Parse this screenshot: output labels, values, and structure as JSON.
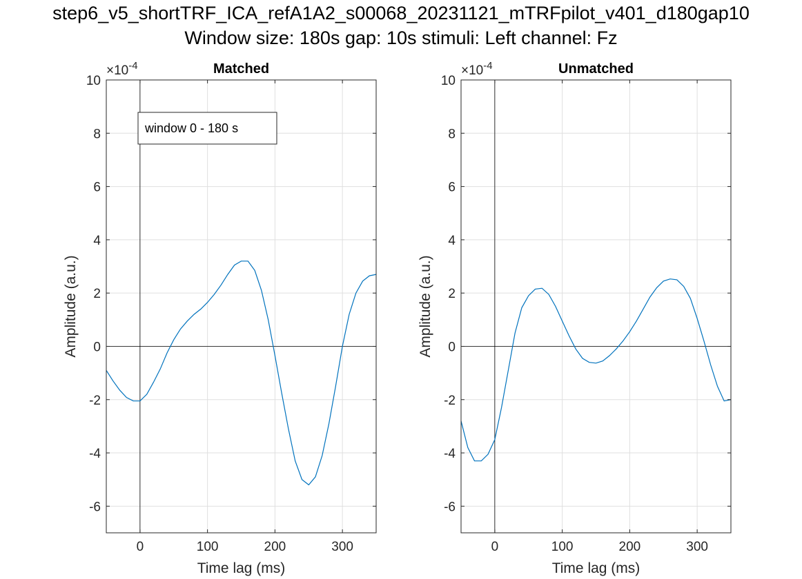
{
  "figure": {
    "title_line1": "step6_v5_shortTRF_ICA_refA1A2_s00068_20231121_mTRFpilot_v401_d180gap10",
    "title_line2": "Window size: 180s gap: 10s stimuli: Left channel: Fz"
  },
  "chart_data": [
    {
      "type": "line",
      "title": "Matched",
      "xlabel": "Time lag (ms)",
      "ylabel": "Amplitude (a.u.)",
      "y_exponent_label": "×10",
      "y_exponent_power": "-4",
      "xlim": [
        -50,
        350
      ],
      "ylim": [
        -7,
        10
      ],
      "xticks": [
        0,
        100,
        200,
        300
      ],
      "yticks": [
        -6,
        -4,
        -2,
        0,
        2,
        4,
        6,
        8,
        10
      ],
      "grid": true,
      "zero_lines": true,
      "line_color": "#0072BD",
      "legend": "window 0 - 180 s",
      "legend_location": "top-left",
      "series": [
        {
          "x": [
            -50,
            -40,
            -30,
            -20,
            -10,
            0,
            10,
            20,
            30,
            40,
            50,
            60,
            70,
            80,
            90,
            100,
            110,
            120,
            130,
            140,
            150,
            160,
            170,
            180,
            190,
            200,
            210,
            220,
            230,
            240,
            250,
            260,
            270,
            280,
            290,
            300,
            310,
            320,
            330,
            340,
            350
          ],
          "y": [
            -0.9,
            -1.3,
            -1.65,
            -1.92,
            -2.05,
            -2.05,
            -1.8,
            -1.35,
            -0.85,
            -0.25,
            0.25,
            0.65,
            0.95,
            1.2,
            1.4,
            1.65,
            1.95,
            2.3,
            2.7,
            3.05,
            3.2,
            3.2,
            2.85,
            2.1,
            1.0,
            -0.35,
            -1.75,
            -3.1,
            -4.3,
            -5.0,
            -5.2,
            -4.9,
            -4.1,
            -2.9,
            -1.5,
            0.0,
            1.2,
            2.0,
            2.45,
            2.65,
            2.7
          ]
        }
      ]
    },
    {
      "type": "line",
      "title": "Unmatched",
      "xlabel": "Time lag (ms)",
      "ylabel": "Amplitude (a.u.)",
      "y_exponent_label": "×10",
      "y_exponent_power": "-4",
      "xlim": [
        -50,
        350
      ],
      "ylim": [
        -7,
        10
      ],
      "xticks": [
        0,
        100,
        200,
        300
      ],
      "yticks": [
        -6,
        -4,
        -2,
        0,
        2,
        4,
        6,
        8,
        10
      ],
      "grid": true,
      "zero_lines": true,
      "line_color": "#0072BD",
      "series": [
        {
          "x": [
            -50,
            -40,
            -30,
            -20,
            -10,
            0,
            10,
            20,
            30,
            40,
            50,
            60,
            70,
            80,
            90,
            100,
            110,
            120,
            130,
            140,
            150,
            160,
            170,
            180,
            190,
            200,
            210,
            220,
            230,
            240,
            250,
            260,
            270,
            280,
            290,
            300,
            310,
            320,
            330,
            340,
            350
          ],
          "y": [
            -2.8,
            -3.8,
            -4.3,
            -4.3,
            -4.05,
            -3.5,
            -2.3,
            -0.9,
            0.5,
            1.45,
            1.9,
            2.15,
            2.18,
            1.95,
            1.5,
            0.95,
            0.4,
            -0.1,
            -0.45,
            -0.6,
            -0.63,
            -0.55,
            -0.35,
            -0.1,
            0.2,
            0.55,
            0.95,
            1.4,
            1.85,
            2.2,
            2.45,
            2.53,
            2.5,
            2.25,
            1.8,
            1.05,
            0.2,
            -0.7,
            -1.5,
            -2.05,
            -2.0
          ]
        }
      ]
    }
  ]
}
